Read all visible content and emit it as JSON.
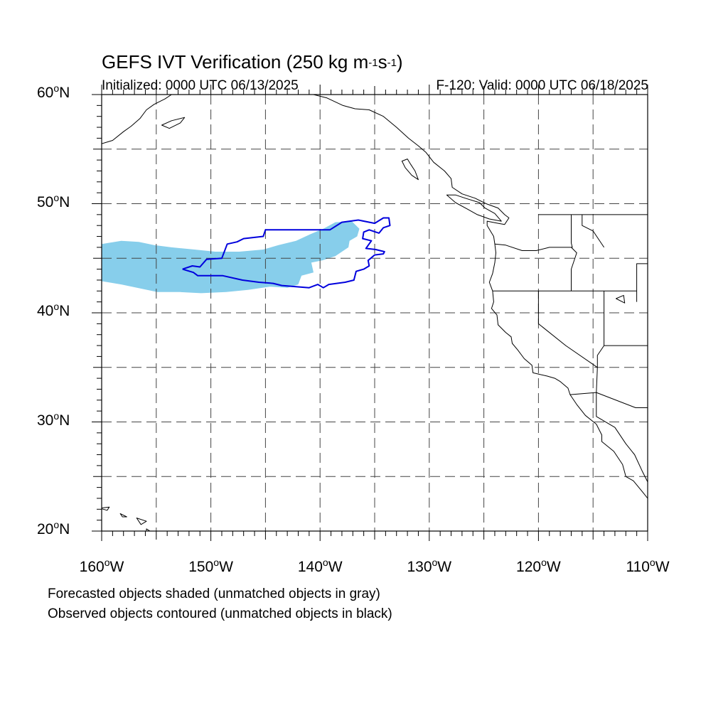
{
  "title": {
    "prefix": "GEFS IVT Verification (250 kg m",
    "exp1": "-1",
    "mid": "s",
    "exp2": "-1",
    "suffix": ")"
  },
  "subtitle_left": "Initialized: 0000 UTC 06/13/2025",
  "subtitle_right": "F-120: Valid: 0000 UTC 06/18/2025",
  "captions": [
    "Forecasted objects shaded (unmatched objects in gray)",
    "Observed objects contoured (unmatched objects in black)"
  ],
  "map": {
    "projection": "equirectangular",
    "lon_range": [
      -160,
      -110
    ],
    "lat_range": [
      20,
      60
    ],
    "lon_ticks": [
      {
        "value": -160,
        "label": "160",
        "hemi": "W"
      },
      {
        "value": -150,
        "label": "150",
        "hemi": "W"
      },
      {
        "value": -140,
        "label": "140",
        "hemi": "W"
      },
      {
        "value": -130,
        "label": "130",
        "hemi": "W"
      },
      {
        "value": -120,
        "label": "120",
        "hemi": "W"
      },
      {
        "value": -110,
        "label": "110",
        "hemi": "W"
      }
    ],
    "lat_ticks": [
      {
        "value": 60,
        "label": "60",
        "hemi": "N"
      },
      {
        "value": 50,
        "label": "50",
        "hemi": "N"
      },
      {
        "value": 40,
        "label": "40",
        "hemi": "N"
      },
      {
        "value": 30,
        "label": "30",
        "hemi": "N"
      },
      {
        "value": 20,
        "label": "20",
        "hemi": "N"
      }
    ],
    "gridlines": "dashed every 5 degrees",
    "forecast_fill_color": "#87ceeb",
    "observed_contour_color": "#0000dd",
    "forecast_object": [
      [
        -160,
        46.3
      ],
      [
        -158.2,
        46.6
      ],
      [
        -156.6,
        46.5
      ],
      [
        -155.2,
        46.2
      ],
      [
        -153.6,
        46.0
      ],
      [
        -151.5,
        45.8
      ],
      [
        -149.6,
        45.6
      ],
      [
        -147.4,
        45.6
      ],
      [
        -145.2,
        45.8
      ],
      [
        -143.8,
        46.2
      ],
      [
        -142.2,
        46.6
      ],
      [
        -140.9,
        47.2
      ],
      [
        -139.7,
        47.7
      ],
      [
        -138.6,
        48.3
      ],
      [
        -137.1,
        48.4
      ],
      [
        -136.4,
        47.7
      ],
      [
        -136.6,
        47.0
      ],
      [
        -137.3,
        46.6
      ],
      [
        -137.4,
        46.0
      ],
      [
        -138.6,
        45.2
      ],
      [
        -139.8,
        44.8
      ],
      [
        -140.8,
        44.6
      ],
      [
        -140.6,
        43.7
      ],
      [
        -141.7,
        43.4
      ],
      [
        -142.0,
        42.6
      ],
      [
        -143.0,
        42.3
      ],
      [
        -144.6,
        42.4
      ],
      [
        -146.6,
        42.1
      ],
      [
        -148.6,
        41.9
      ],
      [
        -150.9,
        41.8
      ],
      [
        -152.8,
        41.9
      ],
      [
        -154.9,
        41.9
      ],
      [
        -156.3,
        42.2
      ],
      [
        -158.2,
        42.6
      ],
      [
        -160,
        42.9
      ]
    ],
    "observed_object": [
      [
        -152.6,
        44.0
      ],
      [
        -151.7,
        44.3
      ],
      [
        -151.0,
        44.2
      ],
      [
        -150.4,
        44.9
      ],
      [
        -149.0,
        45.0
      ],
      [
        -148.5,
        46.3
      ],
      [
        -147.6,
        46.5
      ],
      [
        -147.0,
        46.8
      ],
      [
        -145.2,
        47.0
      ],
      [
        -145.0,
        47.6
      ],
      [
        -142.6,
        47.6
      ],
      [
        -141.0,
        47.6
      ],
      [
        -139.1,
        47.6
      ],
      [
        -138.0,
        48.3
      ],
      [
        -136.5,
        48.5
      ],
      [
        -135.0,
        48.2
      ],
      [
        -134.2,
        48.7
      ],
      [
        -133.7,
        48.7
      ],
      [
        -133.6,
        48.0
      ],
      [
        -134.2,
        47.8
      ],
      [
        -134.6,
        47.3
      ],
      [
        -135.5,
        47.6
      ],
      [
        -136.0,
        47.4
      ],
      [
        -136.1,
        46.8
      ],
      [
        -135.3,
        46.6
      ],
      [
        -135.8,
        45.9
      ],
      [
        -134.9,
        45.8
      ],
      [
        -134.1,
        45.6
      ],
      [
        -134.2,
        45.4
      ],
      [
        -135.0,
        45.3
      ],
      [
        -135.6,
        44.8
      ],
      [
        -135.5,
        44.3
      ],
      [
        -136.0,
        44.0
      ],
      [
        -136.7,
        43.8
      ],
      [
        -136.9,
        43.0
      ],
      [
        -137.7,
        42.8
      ],
      [
        -139.2,
        42.6
      ],
      [
        -139.7,
        42.3
      ],
      [
        -140.2,
        42.6
      ],
      [
        -141.0,
        42.3
      ],
      [
        -142.2,
        42.4
      ],
      [
        -143.5,
        42.5
      ],
      [
        -144.3,
        42.7
      ],
      [
        -145.6,
        42.8
      ],
      [
        -147.1,
        43.0
      ],
      [
        -148.9,
        43.4
      ],
      [
        -151.2,
        43.4
      ],
      [
        -151.6,
        43.7
      ],
      [
        -152.6,
        44.0
      ]
    ],
    "coast": [
      [
        -110,
        23.0
      ],
      [
        -110.4,
        23.5
      ],
      [
        -111.3,
        24.6
      ],
      [
        -112.0,
        25.0
      ],
      [
        -112.3,
        26.1
      ],
      [
        -113.1,
        27.3
      ],
      [
        -114.2,
        28.2
      ],
      [
        -114.2,
        28.8
      ],
      [
        -114.7,
        29.8
      ],
      [
        -115.7,
        30.6
      ],
      [
        -116.5,
        31.6
      ],
      [
        -117.1,
        32.5
      ],
      [
        -117.3,
        33.1
      ],
      [
        -118.0,
        33.7
      ],
      [
        -118.5,
        34.0
      ],
      [
        -119.2,
        34.2
      ],
      [
        -120.5,
        34.5
      ],
      [
        -120.6,
        35.2
      ],
      [
        -121.3,
        35.8
      ],
      [
        -121.9,
        36.6
      ],
      [
        -122.4,
        37.2
      ],
      [
        -122.5,
        37.8
      ],
      [
        -123.0,
        38.2
      ],
      [
        -123.7,
        38.9
      ],
      [
        -123.8,
        39.8
      ],
      [
        -124.3,
        40.4
      ],
      [
        -124.1,
        41.0
      ],
      [
        -124.2,
        42.0
      ],
      [
        -124.5,
        42.8
      ],
      [
        -124.2,
        43.6
      ],
      [
        -124.0,
        44.6
      ],
      [
        -123.9,
        45.5
      ],
      [
        -124.0,
        46.3
      ],
      [
        -124.1,
        47.0
      ],
      [
        -124.7,
        48.0
      ],
      [
        -124.7,
        48.4
      ],
      [
        -123.7,
        48.2
      ],
      [
        -123.1,
        48.1
      ],
      [
        -122.7,
        48.7
      ],
      [
        -123.1,
        49.0
      ],
      [
        -123.7,
        49.6
      ],
      [
        -124.8,
        50.0
      ],
      [
        -125.8,
        50.5
      ],
      [
        -127.0,
        50.9
      ],
      [
        -127.9,
        51.5
      ],
      [
        -128.0,
        52.3
      ],
      [
        -128.6,
        53.0
      ],
      [
        -129.6,
        53.8
      ],
      [
        -130.3,
        54.7
      ],
      [
        -131.0,
        55.3
      ],
      [
        -131.9,
        56.0
      ],
      [
        -133.0,
        57.0
      ],
      [
        -134.2,
        58.0
      ],
      [
        -135.5,
        58.6
      ],
      [
        -136.8,
        58.7
      ],
      [
        -137.9,
        59.0
      ],
      [
        -139.4,
        59.7
      ],
      [
        -140.6,
        60
      ]
    ],
    "vancouver_island": [
      [
        -123.4,
        48.4
      ],
      [
        -124.5,
        48.6
      ],
      [
        -125.6,
        49.0
      ],
      [
        -126.5,
        49.5
      ],
      [
        -127.6,
        50.1
      ],
      [
        -128.4,
        50.8
      ],
      [
        -127.6,
        50.8
      ],
      [
        -126.7,
        50.5
      ],
      [
        -125.4,
        50.1
      ],
      [
        -124.9,
        49.6
      ],
      [
        -124.0,
        49.1
      ],
      [
        -123.4,
        48.4
      ]
    ],
    "haida_gwaii": [
      [
        -131.0,
        52.2
      ],
      [
        -131.6,
        52.6
      ],
      [
        -132.2,
        53.3
      ],
      [
        -132.5,
        53.9
      ],
      [
        -132.0,
        54.1
      ],
      [
        -131.7,
        53.6
      ],
      [
        -131.3,
        53.0
      ],
      [
        -131.0,
        52.2
      ]
    ],
    "alaska_west": [
      [
        -160,
        55.5
      ],
      [
        -159.0,
        55.8
      ],
      [
        -158.0,
        56.6
      ],
      [
        -157.3,
        57.1
      ],
      [
        -156.5,
        57.8
      ],
      [
        -155.9,
        58.6
      ],
      [
        -155.2,
        59.1
      ],
      [
        -154.2,
        59.6
      ],
      [
        -153.6,
        60
      ]
    ],
    "kodiak": [
      [
        -154.5,
        57.2
      ],
      [
        -153.6,
        57.6
      ],
      [
        -152.4,
        57.9
      ],
      [
        -152.8,
        57.4
      ],
      [
        -153.8,
        56.9
      ],
      [
        -154.5,
        57.2
      ]
    ],
    "bc_inland": [
      [
        -120,
        49
      ],
      [
        -118.5,
        49.0
      ],
      [
        -117.0,
        49.0
      ],
      [
        -116,
        49
      ],
      [
        -115,
        49
      ],
      [
        -110,
        49
      ]
    ],
    "states": [
      [
        [
          -117.0,
          49.0
        ],
        [
          -117.0,
          46.4
        ],
        [
          -116.9,
          46.0
        ],
        [
          -119.0,
          46.0
        ],
        [
          -120.2,
          45.7
        ],
        [
          -121.5,
          45.7
        ],
        [
          -123.0,
          46.2
        ],
        [
          -124.0,
          46.3
        ]
      ],
      [
        [
          -124.2,
          42.0
        ],
        [
          -120.0,
          42.0
        ],
        [
          -117.0,
          42.0
        ],
        [
          -111.0,
          42.0
        ]
      ],
      [
        [
          -117.0,
          46.0
        ],
        [
          -116.5,
          45.5
        ],
        [
          -117.0,
          44.0
        ],
        [
          -117.0,
          42.0
        ]
      ],
      [
        [
          -120.0,
          42.0
        ],
        [
          -120.0,
          39.0
        ],
        [
          -117.5,
          37.0
        ],
        [
          -114.6,
          35.0
        ],
        [
          -114.7,
          32.7
        ]
      ],
      [
        [
          -114.0,
          42.0
        ],
        [
          -114.0,
          37.0
        ],
        [
          -114.6,
          36.1
        ],
        [
          -114.6,
          35.0
        ]
      ],
      [
        [
          -111.0,
          41.0
        ],
        [
          -111.0,
          42.0
        ],
        [
          -111.0,
          44.5
        ],
        [
          -110,
          44.5
        ]
      ],
      [
        [
          -114.0,
          37.0
        ],
        [
          -110,
          37.0
        ]
      ],
      [
        [
          -117.1,
          32.5
        ],
        [
          -114.7,
          32.7
        ],
        [
          -111.1,
          31.3
        ],
        [
          -110,
          31.3
        ]
      ],
      [
        [
          -114.7,
          32.7
        ],
        [
          -114.7,
          30.5
        ],
        [
          -113.0,
          29.5
        ],
        [
          -112.0,
          28.0
        ],
        [
          -111.2,
          27.0
        ],
        [
          -110.5,
          25.5
        ],
        [
          -110,
          24.5
        ]
      ],
      [
        [
          -114.0,
          46.0
        ],
        [
          -115.0,
          47.5
        ],
        [
          -116.0,
          48.0
        ],
        [
          -116.0,
          49.0
        ]
      ]
    ],
    "hawaii": [
      [
        [
          -160.2,
          22.1
        ],
        [
          -159.3,
          22.2
        ],
        [
          -159.5,
          21.9
        ],
        [
          -160.2,
          22.1
        ]
      ],
      [
        [
          -158.3,
          21.6
        ],
        [
          -157.7,
          21.3
        ],
        [
          -158.1,
          21.3
        ],
        [
          -158.3,
          21.6
        ]
      ],
      [
        [
          -156.8,
          21.2
        ],
        [
          -155.9,
          20.9
        ],
        [
          -156.4,
          20.6
        ],
        [
          -156.8,
          21.2
        ]
      ],
      [
        [
          -155.9,
          20.2
        ],
        [
          -154.8,
          19.5
        ],
        [
          -155.9,
          18.9
        ],
        [
          -155.9,
          20.2
        ]
      ]
    ],
    "great_salt_lake": [
      [
        -112.9,
        41.3
      ],
      [
        -112.2,
        41.6
      ],
      [
        -112.1,
        40.9
      ],
      [
        -112.9,
        41.3
      ]
    ]
  }
}
